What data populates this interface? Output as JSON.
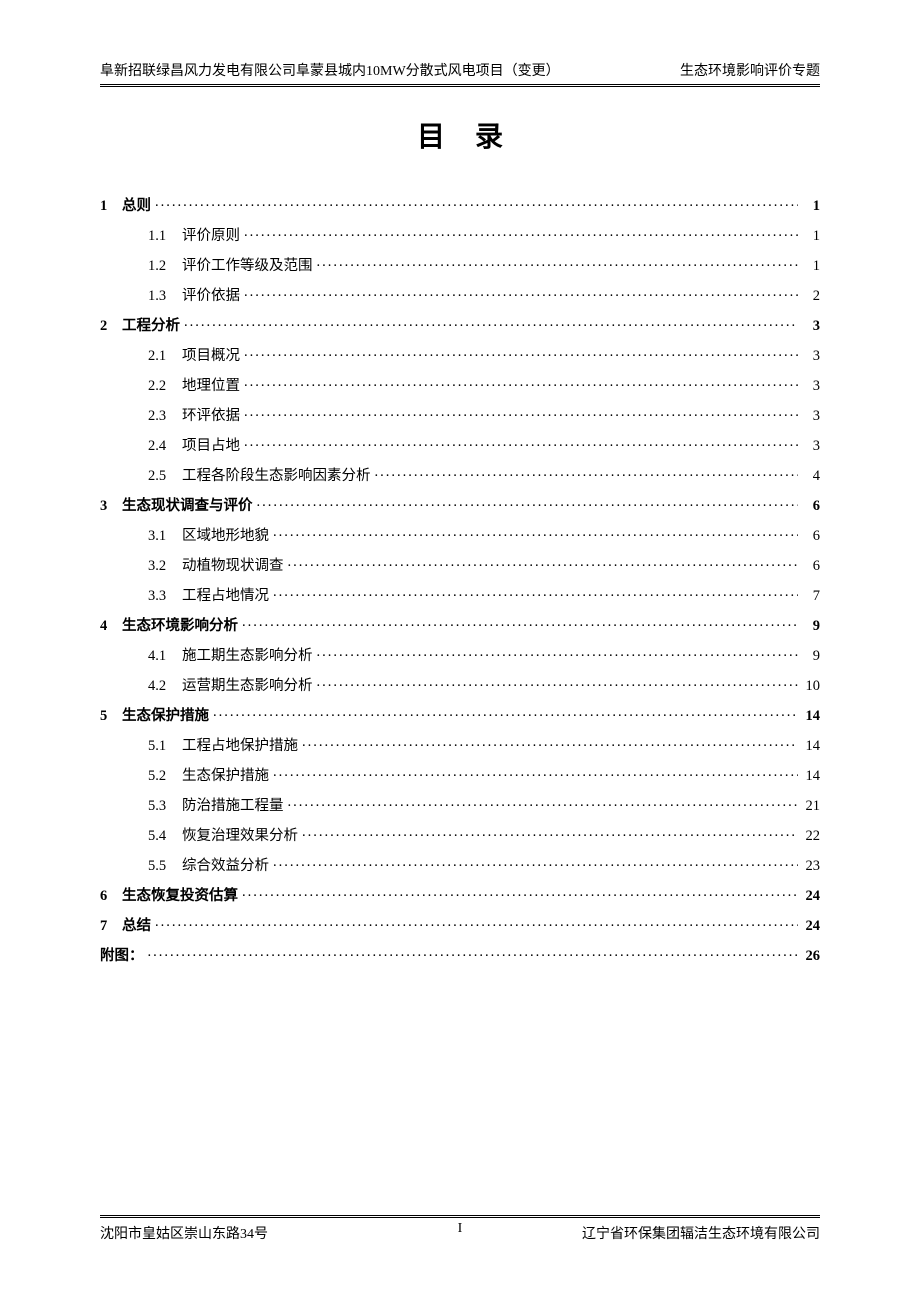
{
  "header": {
    "left": "阜新招联绿昌风力发电有限公司阜蒙县城内10MW分散式风电项目（变更）",
    "right": "生态环境影响评价专题"
  },
  "title": "目录",
  "toc": [
    {
      "level": 1,
      "num": "1",
      "title": "总则",
      "page": "1"
    },
    {
      "level": 2,
      "num": "1.1",
      "title": "评价原则",
      "page": "1"
    },
    {
      "level": 2,
      "num": "1.2",
      "title": "评价工作等级及范围",
      "page": "1"
    },
    {
      "level": 2,
      "num": "1.3",
      "title": "评价依据",
      "page": "2"
    },
    {
      "level": 1,
      "num": "2",
      "title": "工程分析",
      "page": "3"
    },
    {
      "level": 2,
      "num": "2.1",
      "title": "项目概况",
      "page": "3"
    },
    {
      "level": 2,
      "num": "2.2",
      "title": "地理位置",
      "page": "3"
    },
    {
      "level": 2,
      "num": "2.3",
      "title": "环评依据",
      "page": "3"
    },
    {
      "level": 2,
      "num": "2.4",
      "title": "项目占地",
      "page": "3"
    },
    {
      "level": 2,
      "num": "2.5",
      "title": "工程各阶段生态影响因素分析",
      "page": "4"
    },
    {
      "level": 1,
      "num": "3",
      "title": "生态现状调查与评价",
      "page": "6"
    },
    {
      "level": 2,
      "num": "3.1",
      "title": "区域地形地貌",
      "page": "6"
    },
    {
      "level": 2,
      "num": "3.2",
      "title": "动植物现状调查",
      "page": "6"
    },
    {
      "level": 2,
      "num": "3.3",
      "title": "工程占地情况",
      "page": "7"
    },
    {
      "level": 1,
      "num": "4",
      "title": "生态环境影响分析",
      "page": "9"
    },
    {
      "level": 2,
      "num": "4.1",
      "title": "施工期生态影响分析",
      "page": "9"
    },
    {
      "level": 2,
      "num": "4.2",
      "title": "运营期生态影响分析",
      "page": "10"
    },
    {
      "level": 1,
      "num": "5",
      "title": "生态保护措施",
      "page": "14"
    },
    {
      "level": 2,
      "num": "5.1",
      "title": "工程占地保护措施",
      "page": "14"
    },
    {
      "level": 2,
      "num": "5.2",
      "title": "生态保护措施",
      "page": "14"
    },
    {
      "level": 2,
      "num": "5.3",
      "title": "防治措施工程量",
      "page": "21"
    },
    {
      "level": 2,
      "num": "5.4",
      "title": "恢复治理效果分析",
      "page": "22"
    },
    {
      "level": 2,
      "num": "5.5",
      "title": "综合效益分析",
      "page": "23"
    },
    {
      "level": 1,
      "num": "6",
      "title": "生态恢复投资估算",
      "page": "24"
    },
    {
      "level": 1,
      "num": "7",
      "title": "总结",
      "page": "24"
    },
    {
      "level": 0,
      "num": "",
      "title": "附图：",
      "page": "26"
    }
  ],
  "footer": {
    "left": "沈阳市皇姑区崇山东路34号",
    "center": "I",
    "right": "辽宁省环保集团辐洁生态环境有限公司"
  }
}
